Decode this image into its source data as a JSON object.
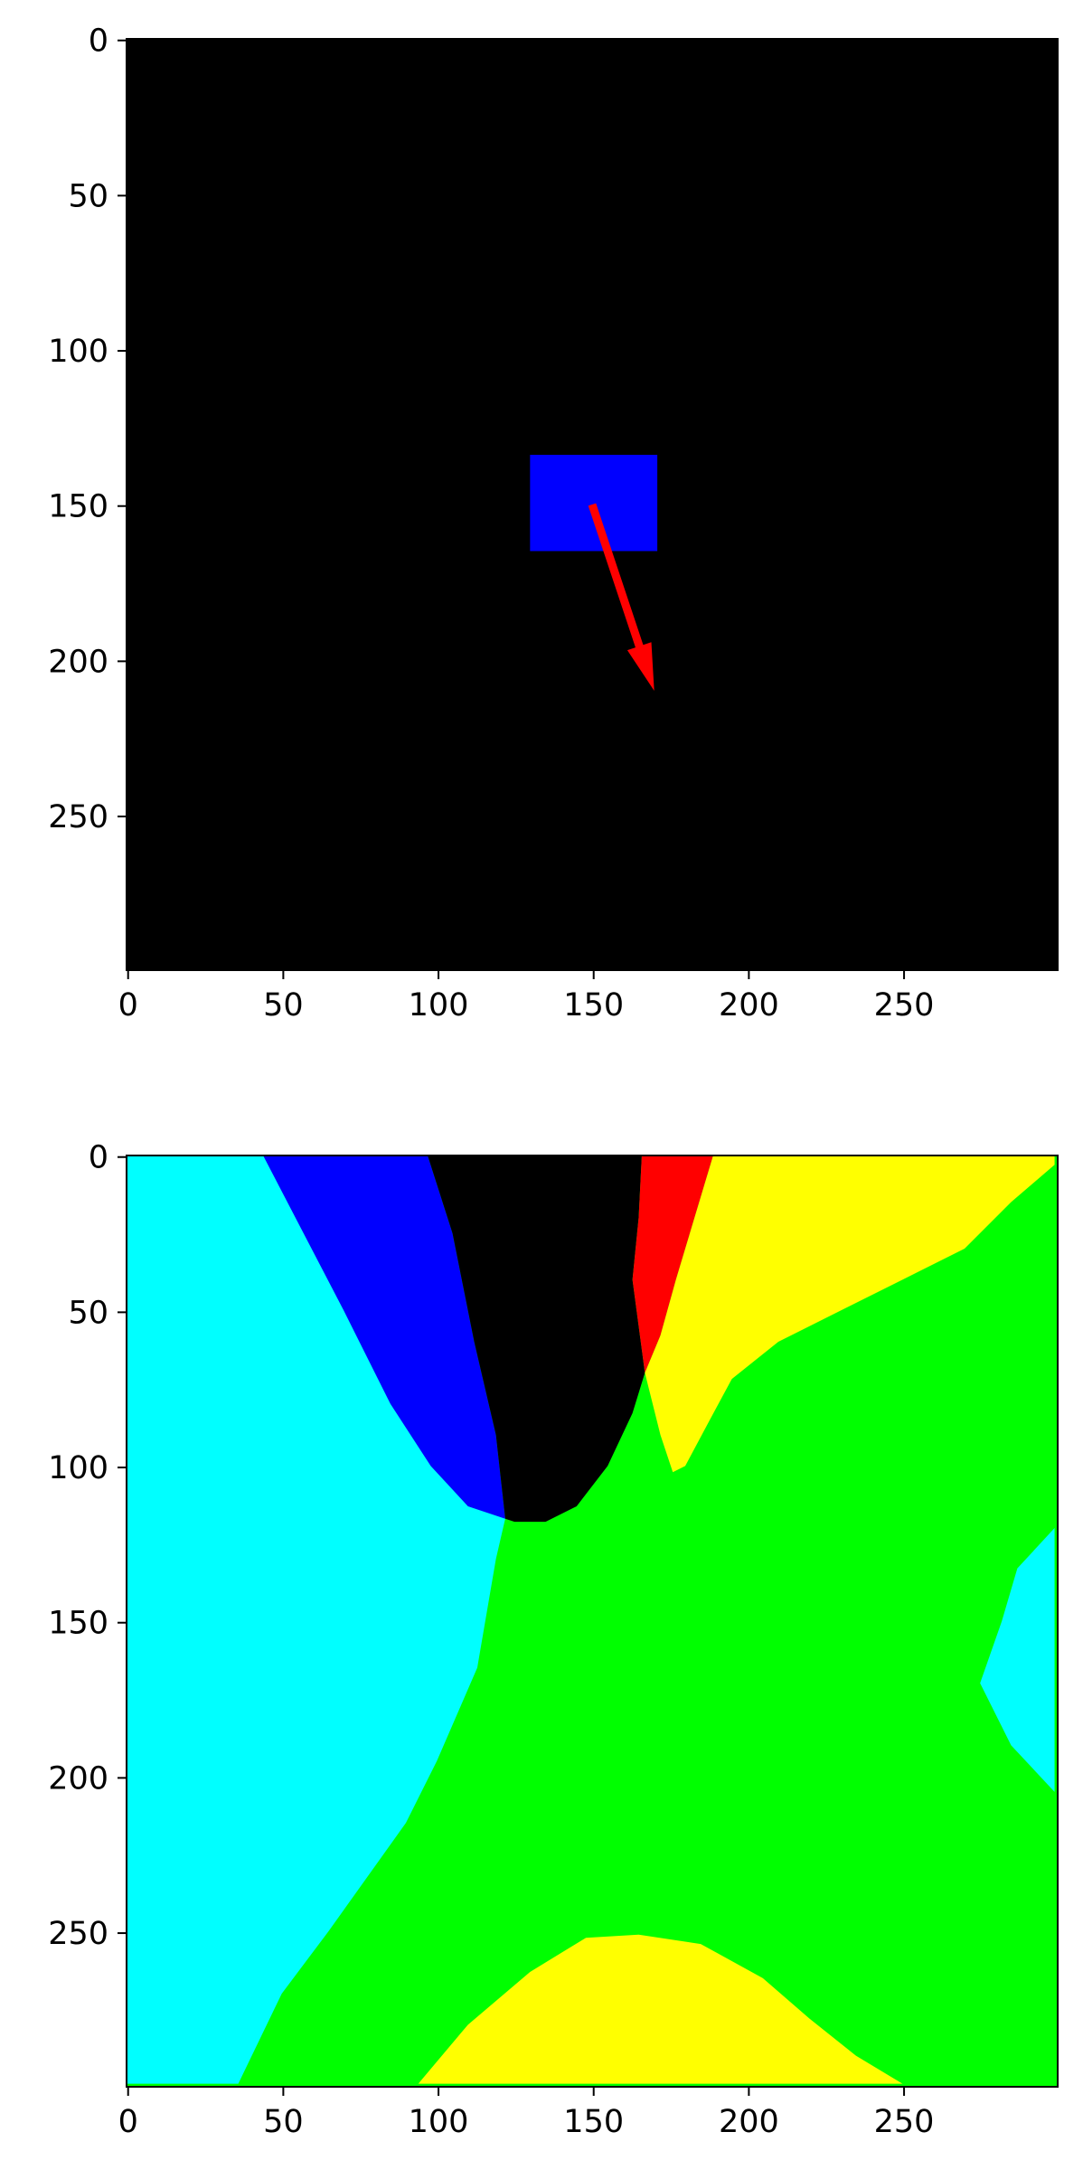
{
  "chart_data": [
    {
      "type": "image",
      "title": "",
      "xlabel": "",
      "ylabel": "",
      "xlim": [
        0,
        299
      ],
      "ylim": [
        299,
        0
      ],
      "xticks": [
        0,
        50,
        100,
        150,
        200,
        250
      ],
      "yticks": [
        0,
        50,
        100,
        150,
        200,
        250
      ],
      "xtick_labels": [
        "0",
        "50",
        "100",
        "150",
        "200",
        "250"
      ],
      "ytick_labels": [
        "0",
        "50",
        "100",
        "150",
        "200",
        "250"
      ],
      "background": "#000000",
      "rectangle": {
        "x": [
          130,
          171
        ],
        "y": [
          134,
          165
        ],
        "color": "#0000ff"
      },
      "arrow": {
        "from": [
          150,
          150
        ],
        "to": [
          170,
          210
        ],
        "color": "#ff0000"
      }
    },
    {
      "type": "heatmap",
      "title": "",
      "xlabel": "",
      "ylabel": "",
      "xlim": [
        0,
        299
      ],
      "ylim": [
        299,
        0
      ],
      "xticks": [
        0,
        50,
        100,
        150,
        200,
        250
      ],
      "yticks": [
        0,
        50,
        100,
        150,
        200,
        250
      ],
      "xtick_labels": [
        "0",
        "50",
        "100",
        "150",
        "200",
        "250"
      ],
      "ytick_labels": [
        "0",
        "50",
        "100",
        "150",
        "200",
        "250"
      ],
      "background": "#00ff00",
      "regions": [
        {
          "color": "#00ffff",
          "points": [
            [
              0,
              0
            ],
            [
              44,
              0
            ],
            [
              70,
              35
            ],
            [
              90,
              70
            ],
            [
              108,
              98
            ],
            [
              120,
              113
            ],
            [
              122,
              117
            ],
            [
              119,
              130
            ],
            [
              113,
              165
            ],
            [
              100,
              195
            ],
            [
              90,
              215
            ],
            [
              65,
              250
            ],
            [
              50,
              270
            ],
            [
              36,
              299
            ],
            [
              0,
              299
            ]
          ]
        },
        {
          "color": "#0000ff",
          "points": [
            [
              44,
              0
            ],
            [
              97,
              0
            ],
            [
              105,
              25
            ],
            [
              112,
              60
            ],
            [
              119,
              90
            ],
            [
              122,
              117
            ],
            [
              110,
              113
            ],
            [
              98,
              100
            ],
            [
              85,
              80
            ],
            [
              70,
              50
            ],
            [
              57,
              25
            ]
          ]
        },
        {
          "color": "#000000",
          "points": [
            [
              97,
              0
            ],
            [
              166,
              0
            ],
            [
              165,
              20
            ],
            [
              163,
              40
            ],
            [
              165,
              55
            ],
            [
              167,
              70
            ],
            [
              163,
              83
            ],
            [
              155,
              100
            ],
            [
              145,
              113
            ],
            [
              135,
              118
            ],
            [
              125,
              118
            ],
            [
              122,
              117
            ],
            [
              119,
              90
            ],
            [
              112,
              60
            ],
            [
              105,
              25
            ]
          ]
        },
        {
          "color": "#ff0000",
          "points": [
            [
              166,
              0
            ],
            [
              189,
              0
            ],
            [
              183,
              20
            ],
            [
              177,
              40
            ],
            [
              172,
              58
            ],
            [
              167,
              70
            ],
            [
              165,
              55
            ],
            [
              163,
              40
            ],
            [
              165,
              20
            ]
          ]
        },
        {
          "color": "#ffff00",
          "points": [
            [
              189,
              0
            ],
            [
              299,
              0
            ],
            [
              299,
              3
            ],
            [
              285,
              15
            ],
            [
              270,
              30
            ],
            [
              250,
              40
            ],
            [
              230,
              50
            ],
            [
              210,
              60
            ],
            [
              195,
              72
            ],
            [
              188,
              85
            ],
            [
              180,
              100
            ],
            [
              176,
              102
            ],
            [
              172,
              90
            ],
            [
              167,
              70
            ],
            [
              172,
              58
            ],
            [
              177,
              40
            ],
            [
              183,
              20
            ]
          ]
        },
        {
          "color": "#00ffff",
          "points": [
            [
              299,
              120
            ],
            [
              287,
              133
            ],
            [
              282,
              150
            ],
            [
              275,
              170
            ],
            [
              285,
              190
            ],
            [
              299,
              205
            ]
          ]
        },
        {
          "color": "#ffff00",
          "points": [
            [
              94,
              299
            ],
            [
              110,
              280
            ],
            [
              130,
              263
            ],
            [
              148,
              252
            ],
            [
              165,
              251
            ],
            [
              185,
              254
            ],
            [
              205,
              265
            ],
            [
              220,
              278
            ],
            [
              235,
              290
            ],
            [
              250,
              299
            ]
          ]
        }
      ]
    }
  ]
}
